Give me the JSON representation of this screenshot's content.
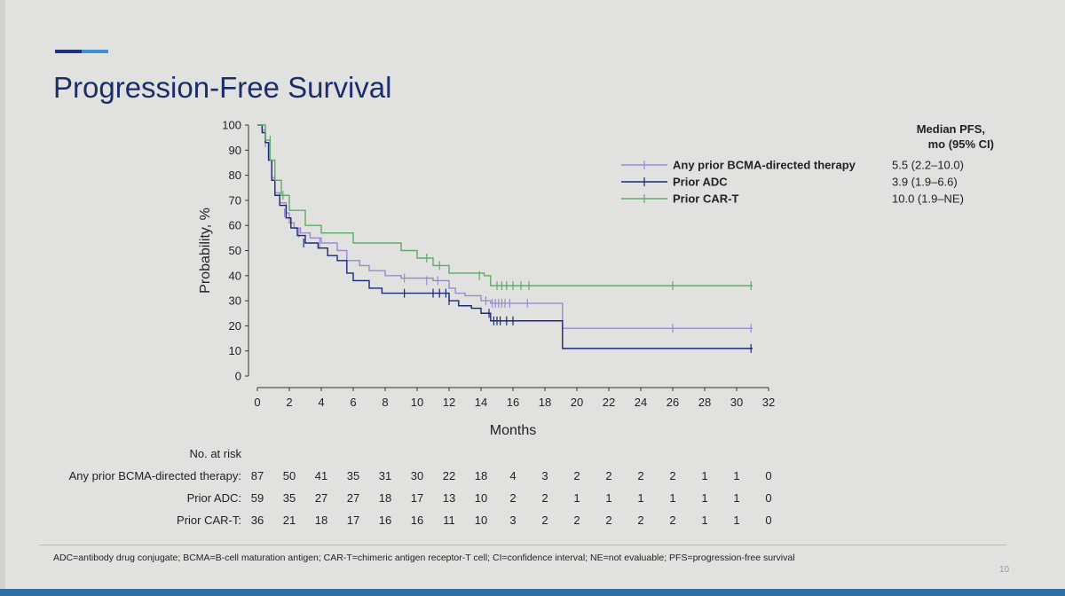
{
  "slide": {
    "title": "Progression-Free Survival",
    "footnote": "ADC=antibody drug conjugate; BCMA=B-cell maturation antigen; CAR-T=chimeric antigen receptor-T cell; CI=confidence interval; NE=not evaluable; PFS=progression-free survival",
    "page_number": "10"
  },
  "chart_data": {
    "type": "line",
    "subtype": "kaplan-meier",
    "title": "",
    "xlabel": "Months",
    "ylabel": "Probability, %",
    "xlim": [
      0,
      32
    ],
    "ylim": [
      0,
      100
    ],
    "xticks": [
      0,
      2,
      4,
      6,
      8,
      10,
      12,
      14,
      16,
      18,
      20,
      22,
      24,
      26,
      28,
      30,
      32
    ],
    "yticks": [
      0,
      10,
      20,
      30,
      40,
      50,
      60,
      70,
      80,
      90,
      100
    ],
    "grid": false,
    "legend_header": [
      "Median PFS,",
      "mo (95% CI)"
    ],
    "series": [
      {
        "name": "Any prior BCMA-directed therapy",
        "median": "5.5 (2.2–10.0)",
        "color": "#9b8ad0",
        "steps": [
          [
            0,
            100
          ],
          [
            0.3,
            98
          ],
          [
            0.5,
            93
          ],
          [
            0.7,
            86
          ],
          [
            0.9,
            79
          ],
          [
            1.1,
            73
          ],
          [
            1.4,
            69
          ],
          [
            1.8,
            65
          ],
          [
            2.0,
            61
          ],
          [
            2.3,
            59
          ],
          [
            2.7,
            57
          ],
          [
            3.3,
            55
          ],
          [
            4.0,
            53
          ],
          [
            5.0,
            50
          ],
          [
            5.6,
            46
          ],
          [
            6.4,
            44
          ],
          [
            7.0,
            42
          ],
          [
            8.0,
            40
          ],
          [
            9.0,
            39
          ],
          [
            11.0,
            38
          ],
          [
            12.0,
            35
          ],
          [
            12.4,
            33
          ],
          [
            13.0,
            32
          ],
          [
            14.0,
            30
          ],
          [
            14.6,
            29
          ],
          [
            19.1,
            19
          ],
          [
            31,
            19
          ]
        ],
        "censors": [
          [
            0.5,
            93
          ],
          [
            1.7,
            65
          ],
          [
            2.6,
            57
          ],
          [
            3.9,
            53
          ],
          [
            9.2,
            39
          ],
          [
            10.6,
            38
          ],
          [
            11.3,
            38
          ],
          [
            14.3,
            30
          ],
          [
            14.7,
            29
          ],
          [
            14.9,
            29
          ],
          [
            15.1,
            29
          ],
          [
            15.3,
            29
          ],
          [
            15.5,
            29
          ],
          [
            15.8,
            29
          ],
          [
            16.9,
            29
          ],
          [
            26.0,
            19
          ],
          [
            30.9,
            19
          ]
        ]
      },
      {
        "name": "Prior ADC",
        "median": "3.9 (1.9–6.6)",
        "color": "#1b2878",
        "steps": [
          [
            0,
            100
          ],
          [
            0.3,
            97
          ],
          [
            0.5,
            93
          ],
          [
            0.7,
            86
          ],
          [
            0.9,
            78
          ],
          [
            1.1,
            72
          ],
          [
            1.4,
            68
          ],
          [
            1.8,
            63
          ],
          [
            2.1,
            59
          ],
          [
            2.5,
            56
          ],
          [
            3.0,
            53
          ],
          [
            3.8,
            51
          ],
          [
            4.4,
            48
          ],
          [
            5.0,
            46
          ],
          [
            5.6,
            41
          ],
          [
            6.0,
            38
          ],
          [
            7.0,
            35
          ],
          [
            7.8,
            33
          ],
          [
            11.2,
            33
          ],
          [
            12.0,
            30
          ],
          [
            12.6,
            28
          ],
          [
            13.4,
            27
          ],
          [
            14.0,
            25
          ],
          [
            14.6,
            22
          ],
          [
            19.1,
            11
          ],
          [
            31,
            11
          ]
        ],
        "censors": [
          [
            2.9,
            53
          ],
          [
            9.2,
            33
          ],
          [
            11.0,
            33
          ],
          [
            11.4,
            33
          ],
          [
            11.8,
            33
          ],
          [
            12.0,
            30
          ],
          [
            14.5,
            25
          ],
          [
            14.8,
            22
          ],
          [
            15.0,
            22
          ],
          [
            15.2,
            22
          ],
          [
            15.6,
            22
          ],
          [
            16.0,
            22
          ],
          [
            30.9,
            11
          ]
        ]
      },
      {
        "name": "Prior CAR-T",
        "median": "10.0 (1.9–NE)",
        "color": "#62aa6c",
        "steps": [
          [
            0,
            100
          ],
          [
            0.5,
            94
          ],
          [
            0.8,
            86
          ],
          [
            1.1,
            78
          ],
          [
            1.5,
            72
          ],
          [
            2.0,
            66
          ],
          [
            3.0,
            60
          ],
          [
            4.0,
            57
          ],
          [
            6.0,
            53
          ],
          [
            9.0,
            50
          ],
          [
            10.0,
            47
          ],
          [
            11.0,
            44
          ],
          [
            12.0,
            41
          ],
          [
            14.2,
            40
          ],
          [
            14.6,
            36
          ],
          [
            31,
            36
          ]
        ],
        "censors": [
          [
            0.8,
            94
          ],
          [
            1.6,
            72
          ],
          [
            10.6,
            47
          ],
          [
            11.4,
            44
          ],
          [
            13.9,
            40
          ],
          [
            15.0,
            36
          ],
          [
            15.3,
            36
          ],
          [
            15.6,
            36
          ],
          [
            16.0,
            36
          ],
          [
            16.5,
            36
          ],
          [
            17.0,
            36
          ],
          [
            26.0,
            36
          ],
          [
            30.9,
            36
          ]
        ]
      }
    ],
    "risk_table": {
      "header": "No. at risk",
      "time_points": [
        0,
        2,
        4,
        6,
        8,
        10,
        12,
        14,
        16,
        18,
        20,
        22,
        24,
        26,
        28,
        30,
        32
      ],
      "rows": [
        {
          "label": "Any prior BCMA-directed therapy:",
          "values": [
            "87",
            "50",
            "41",
            "35",
            "31",
            "30",
            "22",
            "18",
            "4",
            "3",
            "2",
            "2",
            "2",
            "2",
            "1",
            "1",
            "0"
          ]
        },
        {
          "label": "Prior ADC:",
          "values": [
            "59",
            "35",
            "27",
            "27",
            "18",
            "17",
            "13",
            "10",
            "2",
            "2",
            "1",
            "1",
            "1",
            "1",
            "1",
            "1",
            "0"
          ]
        },
        {
          "label": "Prior CAR-T:",
          "values": [
            "36",
            "21",
            "18",
            "17",
            "16",
            "16",
            "11",
            "10",
            "3",
            "2",
            "2",
            "2",
            "2",
            "2",
            "1",
            "1",
            "0"
          ]
        }
      ]
    }
  }
}
